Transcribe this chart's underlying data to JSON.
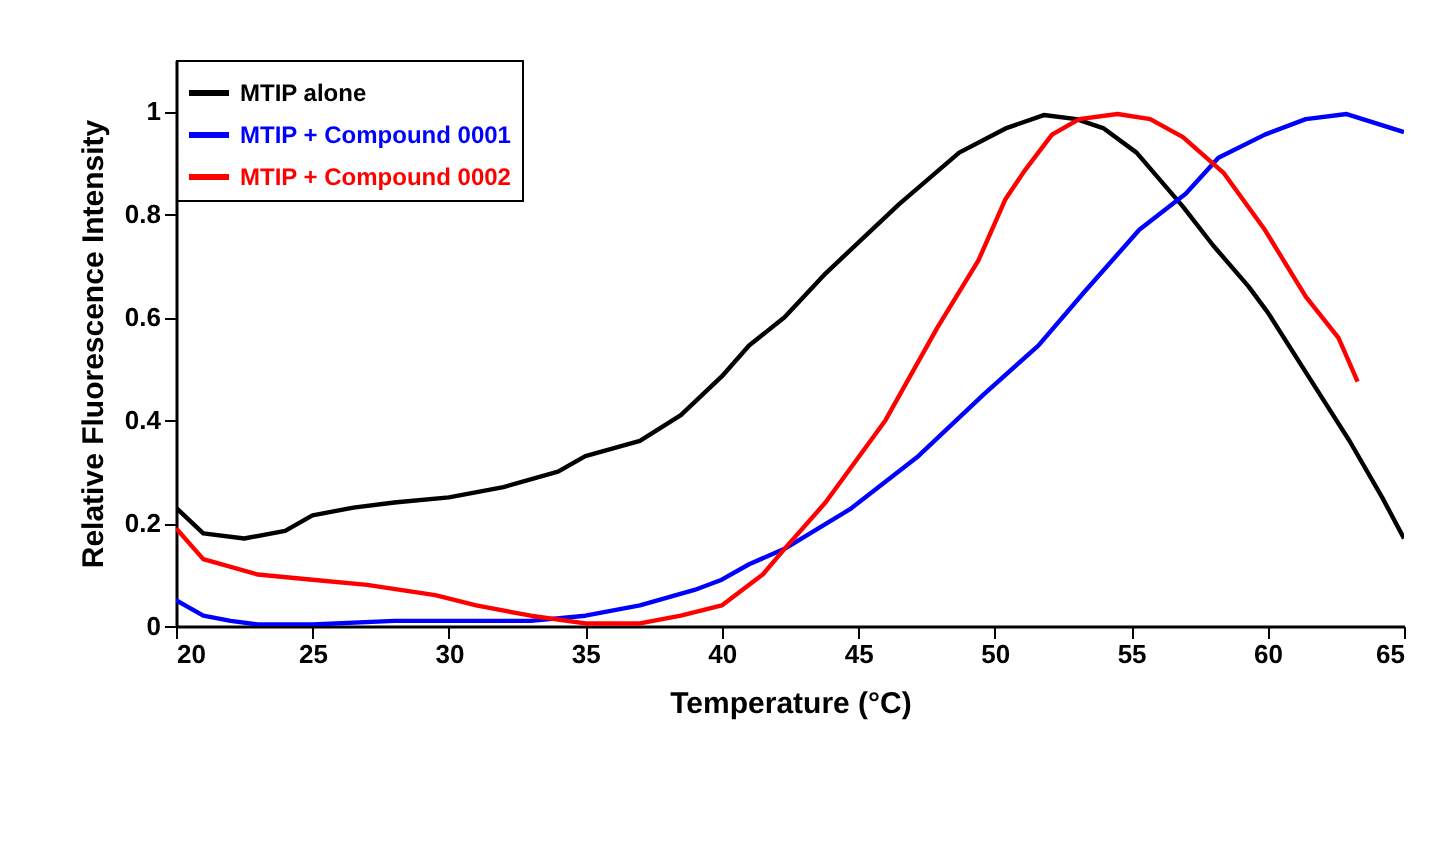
{
  "chart_data": {
    "type": "line",
    "xlabel": "Temperature (°C)",
    "ylabel": "Relative Fluorescence Intensity",
    "xlim": [
      20,
      65
    ],
    "ylim": [
      0,
      1.1
    ],
    "xticks": [
      20,
      25,
      30,
      35,
      40,
      45,
      50,
      55,
      60,
      65
    ],
    "yticks": [
      0,
      0.2,
      0.4,
      0.6,
      0.8,
      1
    ],
    "grid": false,
    "legend": "top left",
    "marker": "none",
    "line_style": "solid",
    "series": [
      {
        "name": "MTIP alone",
        "color": "#000000",
        "x": [
          20,
          21,
          22.5,
          24,
          25,
          26.5,
          28,
          30,
          32,
          34,
          35,
          37,
          38.5,
          40,
          41,
          42.3,
          43.8,
          46.5,
          48.7,
          50.4,
          51.8,
          53,
          54,
          55.2,
          56.9,
          58,
          59.3,
          60,
          61.8,
          63,
          64.2,
          65
        ],
        "values": [
          0.23,
          0.18,
          0.17,
          0.185,
          0.215,
          0.23,
          0.24,
          0.25,
          0.27,
          0.3,
          0.33,
          0.36,
          0.41,
          0.485,
          0.545,
          0.6,
          0.685,
          0.82,
          0.92,
          0.967,
          0.993,
          0.985,
          0.967,
          0.92,
          0.815,
          0.74,
          0.66,
          0.61,
          0.46,
          0.36,
          0.25,
          0.17
        ]
      },
      {
        "name": "MTIP + Compound 0001",
        "color": "#0000ff",
        "x": [
          20,
          21,
          22,
          23,
          25,
          28,
          30,
          33,
          35,
          37,
          39,
          40,
          41,
          42.3,
          44.7,
          47.2,
          49.6,
          51.6,
          53.3,
          55.3,
          57,
          58.2,
          59.9,
          61.4,
          62.9,
          65
        ],
        "values": [
          0.05,
          0.02,
          0.01,
          0.003,
          0.003,
          0.01,
          0.01,
          0.01,
          0.02,
          0.04,
          0.07,
          0.09,
          0.12,
          0.15,
          0.227,
          0.33,
          0.45,
          0.545,
          0.65,
          0.77,
          0.84,
          0.91,
          0.955,
          0.985,
          0.995,
          0.96
        ]
      },
      {
        "name": "MTIP + Compound 0002",
        "color": "#ff0000",
        "x": [
          20,
          21,
          23,
          25,
          27,
          29.5,
          31,
          33,
          35,
          37,
          38.5,
          40,
          41.5,
          42.3,
          43.8,
          46,
          47.9,
          49.4,
          50.4,
          51.1,
          52.1,
          53.1,
          54.5,
          55.7,
          56.9,
          58.4,
          59.9,
          61.4,
          62.6,
          63.3
        ],
        "values": [
          0.19,
          0.13,
          0.1,
          0.09,
          0.08,
          0.06,
          0.04,
          0.02,
          0.005,
          0.005,
          0.02,
          0.04,
          0.1,
          0.15,
          0.24,
          0.4,
          0.58,
          0.71,
          0.83,
          0.885,
          0.955,
          0.985,
          0.995,
          0.985,
          0.95,
          0.88,
          0.77,
          0.64,
          0.56,
          0.475
        ]
      }
    ]
  }
}
